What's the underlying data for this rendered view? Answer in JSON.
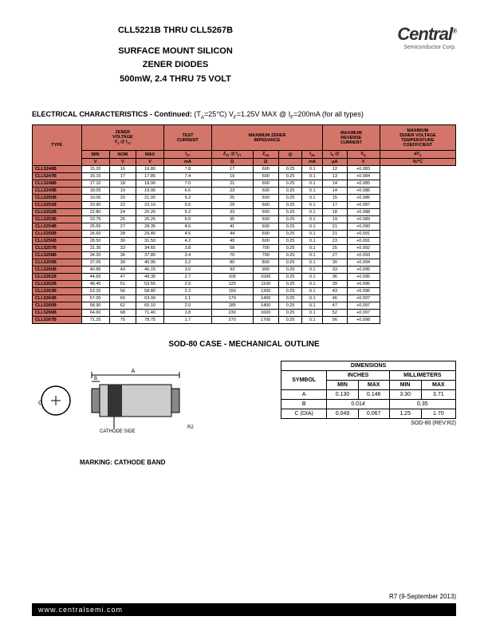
{
  "header": {
    "title1": "CLL5221B THRU CLL5267B",
    "title2": "SURFACE MOUNT SILICON",
    "title3": "ZENER DIODES",
    "title4": "500mW, 2.4 THRU 75 VOLT",
    "logo_main": "Central",
    "logo_sub": "Semiconductor Corp."
  },
  "elec": {
    "title": "ELECTRICAL CHARACTERISTICS - Continued:",
    "conditions": "(T_A=25°C) V_F=1.25V MAX @ I_F=200mA (for all types)",
    "headers": {
      "type": "TYPE",
      "zener": "ZENER\nVOLTAGE",
      "vz_izt": "V_Z @ I_ZT",
      "test": "TEST\nCURRENT",
      "max_imp": "MAXIMUM ZENER\nIMPEDANCE",
      "max_rev": "MAXIMUM\nREVERSE\nCURRENT",
      "max_temp": "MAXIMUM\nZENER VOLTAGE\nTEMPERATURE\nCOEFFICIENT",
      "min": "MIN",
      "nom": "NOM",
      "max": "MAX",
      "izt": "I_ZT",
      "zzt_izt": "Z_ZT @ I_ZT",
      "zzk": "Z_ZK",
      "at": "@",
      "izk": "I_ZK",
      "ir": "I_R",
      "vr": "V_R",
      "avz": "aV_Z",
      "v": "V",
      "ma": "mA",
      "ohm": "Ω",
      "ua": "µA",
      "pctc": "%/°C"
    },
    "rows": [
      [
        "CLL5246B",
        "15.20",
        "16",
        "16.80",
        "7.8",
        "17",
        "600",
        "0.25",
        "0.1",
        "12",
        "+0.083"
      ],
      [
        "CLL5247B",
        "16.15",
        "17",
        "17.85",
        "7.4",
        "19",
        "600",
        "0.25",
        "0.1",
        "13",
        "+0.084"
      ],
      [
        "CLL5248B",
        "17.10",
        "18",
        "18.90",
        "7.0",
        "21",
        "600",
        "0.25",
        "0.1",
        "14",
        "+0.085"
      ],
      [
        "CLL5249B",
        "18.05",
        "19",
        "19.95",
        "6.6",
        "23",
        "600",
        "0.25",
        "0.1",
        "14",
        "+0.086"
      ],
      [
        "CLL5250B",
        "19.00",
        "20",
        "21.00",
        "6.2",
        "25",
        "600",
        "0.25",
        "0.1",
        "15",
        "+0.086"
      ],
      [
        "CLL5251B",
        "20.90",
        "22",
        "23.10",
        "5.6",
        "29",
        "600",
        "0.25",
        "0.1",
        "17",
        "+0.087"
      ],
      [
        "CLL5252B",
        "22.80",
        "24",
        "25.20",
        "5.2",
        "33",
        "600",
        "0.25",
        "0.1",
        "18",
        "+0.088"
      ],
      [
        "CLL5253B",
        "23.75",
        "25",
        "26.25",
        "5.0",
        "35",
        "600",
        "0.25",
        "0.1",
        "19",
        "+0.089"
      ],
      [
        "CLL5254B",
        "25.65",
        "27",
        "28.35",
        "4.6",
        "41",
        "600",
        "0.25",
        "0.1",
        "21",
        "+0.090"
      ],
      [
        "CLL5255B",
        "26.60",
        "28",
        "29.40",
        "4.5",
        "44",
        "600",
        "0.25",
        "0.1",
        "21",
        "+0.091"
      ],
      [
        "CLL5256B",
        "28.50",
        "30",
        "31.50",
        "4.2",
        "49",
        "600",
        "0.25",
        "0.1",
        "23",
        "+0.091"
      ],
      [
        "CLL5257B",
        "31.35",
        "33",
        "34.65",
        "3.8",
        "58",
        "700",
        "0.25",
        "0.1",
        "25",
        "+0.092"
      ],
      [
        "CLL5258B",
        "34.20",
        "36",
        "37.80",
        "3.4",
        "70",
        "700",
        "0.25",
        "0.1",
        "27",
        "+0.093"
      ],
      [
        "CLL5259B",
        "37.05",
        "39",
        "40.95",
        "3.2",
        "80",
        "800",
        "0.25",
        "0.1",
        "30",
        "+0.094"
      ],
      [
        "CLL5260B",
        "40.85",
        "43",
        "45.15",
        "3.0",
        "93",
        "900",
        "0.25",
        "0.1",
        "33",
        "+0.095"
      ],
      [
        "CLL5261B",
        "44.65",
        "47",
        "49.35",
        "2.7",
        "105",
        "1000",
        "0.25",
        "0.1",
        "36",
        "+0.095"
      ],
      [
        "CLL5262B",
        "48.45",
        "51",
        "53.55",
        "2.5",
        "125",
        "1100",
        "0.25",
        "0.1",
        "39",
        "+0.096"
      ],
      [
        "CLL5263B",
        "53.20",
        "56",
        "58.80",
        "2.2",
        "150",
        "1300",
        "0.25",
        "0.1",
        "43",
        "+0.096"
      ],
      [
        "CLL5264B",
        "57.00",
        "60",
        "63.00",
        "2.1",
        "170",
        "1400",
        "0.25",
        "0.1",
        "46",
        "+0.097"
      ],
      [
        "CLL5265B",
        "58.90",
        "62",
        "65.10",
        "2.0",
        "185",
        "1400",
        "0.25",
        "0.1",
        "47",
        "+0.097"
      ],
      [
        "CLL5266B",
        "64.60",
        "68",
        "71.40",
        "1.8",
        "230",
        "1600",
        "0.25",
        "0.1",
        "52",
        "+0.097"
      ],
      [
        "CLL5267B",
        "71.25",
        "75",
        "78.75",
        "1.7",
        "270",
        "1700",
        "0.25",
        "0.1",
        "56",
        "+0.098"
      ]
    ]
  },
  "sod": {
    "title": "SOD-80 CASE - MECHANICAL OUTLINE",
    "labels": {
      "cathode": "CATHODE SIDE",
      "r2": "R2",
      "a": "A",
      "b": "B",
      "c": "C"
    },
    "marking": "MARKING: CATHODE BAND"
  },
  "dims": {
    "title": "DIMENSIONS",
    "inches": "INCHES",
    "mm": "MILLIMETERS",
    "symbol": "SYMBOL",
    "min": "MIN",
    "max": "MAX",
    "rows": [
      [
        "A",
        "0.130",
        "0.146",
        "3.30",
        "3.71"
      ],
      [
        "B",
        "0.014",
        "",
        "0.35",
        ""
      ],
      [
        "C (DIA)",
        "0.049",
        "0.067",
        "1.25",
        "1.70"
      ]
    ],
    "rev": "SOD-80 (REV:R2)"
  },
  "footer": {
    "rev": "R7 (9-September 2013)",
    "url": "www.centralsemi.com"
  }
}
